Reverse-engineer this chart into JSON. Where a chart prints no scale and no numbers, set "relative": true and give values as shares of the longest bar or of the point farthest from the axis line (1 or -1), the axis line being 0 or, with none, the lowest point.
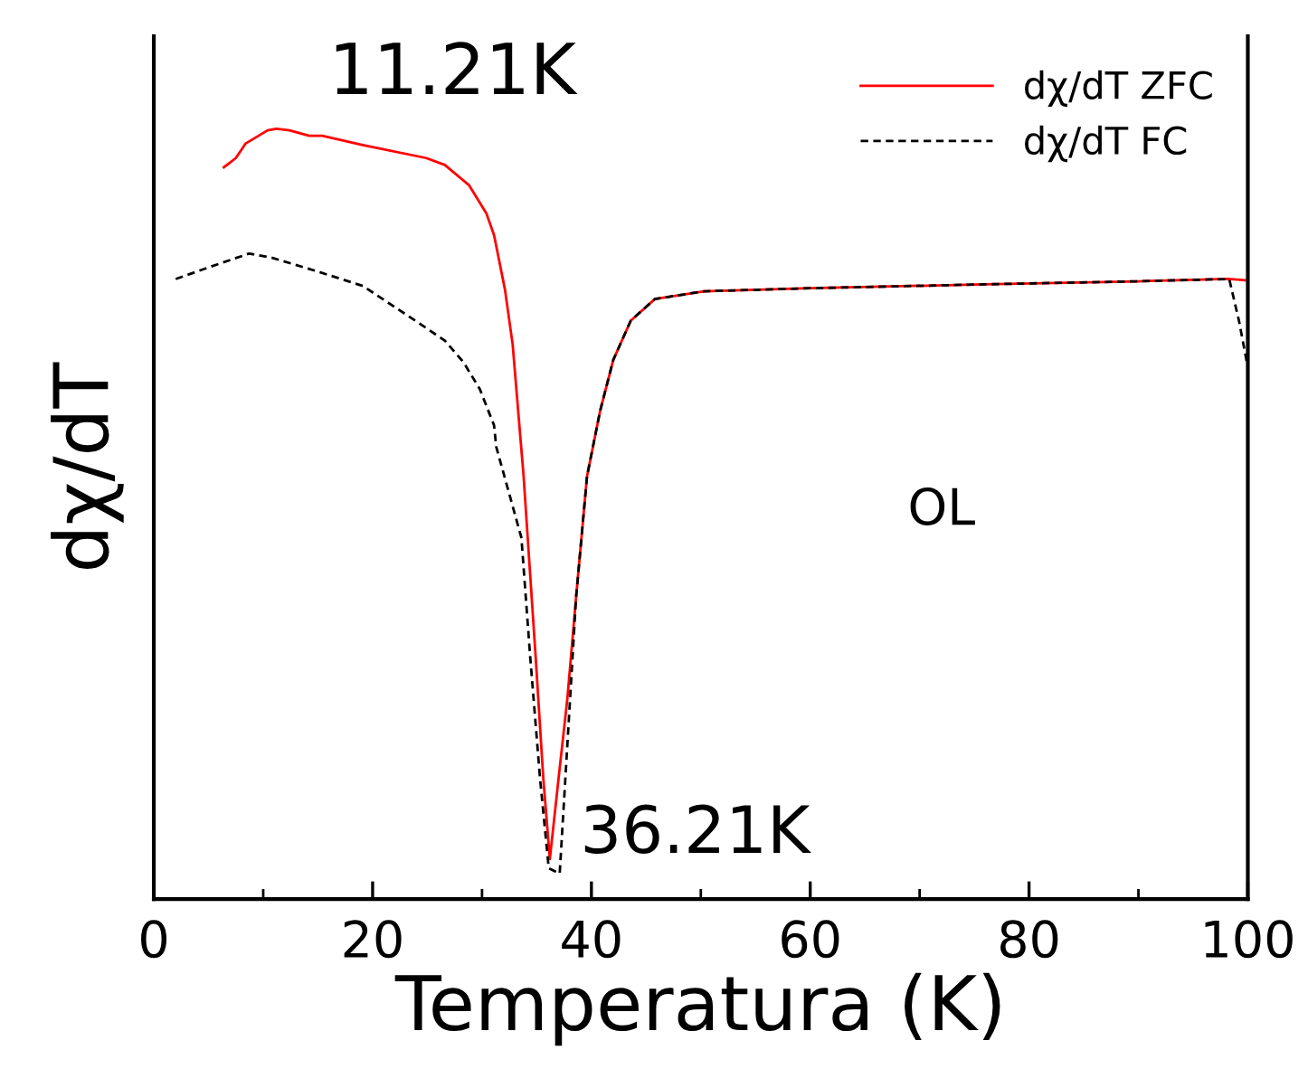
{
  "chart_data": {
    "type": "line",
    "relative": true,
    "xlabel": "Temperatura (K)",
    "ylabel": "dχ/dT",
    "xlim": [
      0,
      100
    ],
    "xticks": [
      0,
      20,
      40,
      60,
      80,
      100
    ],
    "legend": "top right",
    "grid": false,
    "annotations": [
      {
        "text": "11.21K",
        "x": 11.21,
        "y": 1.0
      },
      {
        "text": "36.21K",
        "x": 36.21,
        "y": 0.052
      },
      "OL"
    ],
    "series": [
      {
        "name": "dχ/dT ZFC",
        "color": "#ff0000",
        "line_style": "solid",
        "x": [
          6.4,
          7.5,
          8.4,
          10.4,
          11.2,
          12.4,
          14.2,
          15.4,
          19.1,
          24.9,
          26.6,
          28.8,
          30.4,
          31.1,
          32.1,
          32.8,
          33.8,
          34.9,
          35.6,
          36.2,
          37.0,
          37.8,
          38.6,
          39.6,
          40.8,
          42.0,
          43.6,
          45.8,
          50.3,
          60,
          75.9,
          90,
          98.2,
          100
        ],
        "values": [
          0.95,
          0.962,
          0.981,
          0.998,
          1.0,
          0.998,
          0.991,
          0.991,
          0.979,
          0.962,
          0.953,
          0.927,
          0.89,
          0.862,
          0.791,
          0.72,
          0.549,
          0.315,
          0.157,
          0.052,
          0.157,
          0.26,
          0.392,
          0.549,
          0.634,
          0.7,
          0.751,
          0.779,
          0.789,
          0.793,
          0.798,
          0.802,
          0.805,
          0.803
        ]
      },
      {
        "name": "dχ/dT FC",
        "color": "#000000",
        "line_style": "dashed",
        "x": [
          2.0,
          5.0,
          8.7,
          10.7,
          14.9,
          19.1,
          24.1,
          26.6,
          28.3,
          29.8,
          31.1,
          31.3,
          33.6,
          34.4,
          35.3,
          36.1,
          37.1,
          37.8,
          38.6,
          39.6,
          40.8,
          42.0,
          43.6,
          45.8,
          50.3,
          60,
          75.9,
          90,
          98.3,
          99.2,
          100
        ],
        "values": [
          0.805,
          0.82,
          0.838,
          0.833,
          0.815,
          0.796,
          0.749,
          0.725,
          0.697,
          0.662,
          0.615,
          0.587,
          0.469,
          0.315,
          0.157,
          0.04,
          0.033,
          0.2,
          0.392,
          0.549,
          0.634,
          0.7,
          0.751,
          0.779,
          0.789,
          0.793,
          0.798,
          0.802,
          0.805,
          0.75,
          0.69
        ]
      }
    ]
  }
}
